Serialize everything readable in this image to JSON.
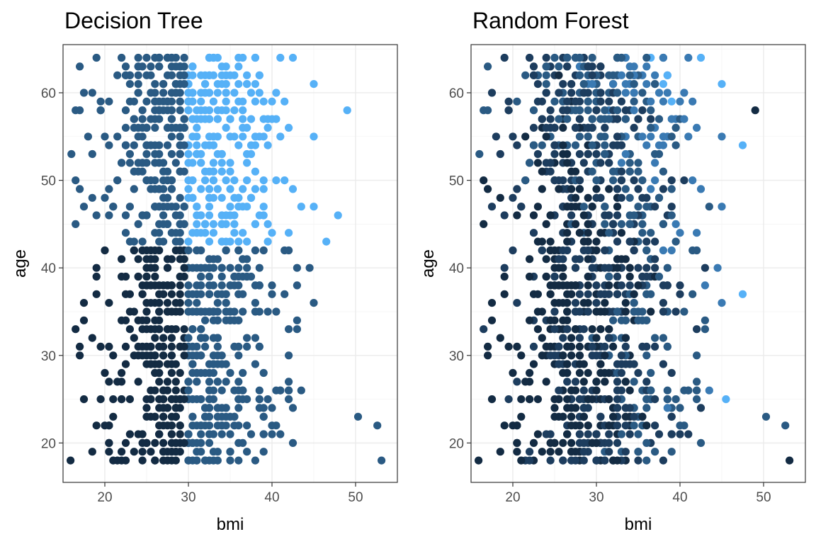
{
  "chart_data": [
    {
      "type": "scatter",
      "title": "Decision Tree",
      "xlabel": "bmi",
      "ylabel": "age",
      "xlim": [
        15,
        55
      ],
      "ylim": [
        15.5,
        65.5
      ],
      "xticks": [
        20,
        30,
        40,
        50
      ],
      "yticks": [
        20,
        30,
        40,
        50,
        60
      ],
      "grid": true,
      "legend": "none",
      "color_scale": [
        "#132b43",
        "#2a5a83",
        "#56b1f7"
      ],
      "points_description_rule": "dark: age < 42.5 and bmi < 30; mid: age < 42.5 and bmi >= 30, or age >= 42.5 and bmi < 30; light: age >= 42.5 and bmi >= 30",
      "sample_points": [
        {
          "x": 49.0,
          "y": 58,
          "tone": "light"
        },
        {
          "x": 53.1,
          "y": 18,
          "tone": "mid"
        },
        {
          "x": 52.6,
          "y": 22,
          "tone": "mid"
        },
        {
          "x": 50.3,
          "y": 23,
          "tone": "mid"
        },
        {
          "x": 15.9,
          "y": 18,
          "tone": "dark"
        },
        {
          "x": 18.5,
          "y": 60,
          "tone": "mid"
        },
        {
          "x": 46.5,
          "y": 43,
          "tone": "light"
        },
        {
          "x": 47.9,
          "y": 46,
          "tone": "light"
        }
      ]
    },
    {
      "type": "scatter",
      "title": "Random Forest",
      "xlabel": "bmi",
      "ylabel": "age",
      "xlim": [
        15,
        55
      ],
      "ylim": [
        15.5,
        65.5
      ],
      "xticks": [
        20,
        30,
        40,
        50
      ],
      "yticks": [
        20,
        30,
        40,
        50,
        60
      ],
      "grid": true,
      "legend": "none",
      "color_scale": [
        "#132b43",
        "#2a5a83",
        "#56b1f7"
      ],
      "sample_points": [
        {
          "x": 49.0,
          "y": 58,
          "tone": "dark"
        },
        {
          "x": 53.1,
          "y": 18,
          "tone": "dark"
        },
        {
          "x": 52.6,
          "y": 22,
          "tone": "mid"
        },
        {
          "x": 50.3,
          "y": 23,
          "tone": "mid"
        },
        {
          "x": 15.9,
          "y": 18,
          "tone": "dark"
        },
        {
          "x": 47.5,
          "y": 54,
          "tone": "light"
        },
        {
          "x": 47.5,
          "y": 37,
          "tone": "light"
        },
        {
          "x": 45.5,
          "y": 25,
          "tone": "light"
        }
      ]
    }
  ]
}
